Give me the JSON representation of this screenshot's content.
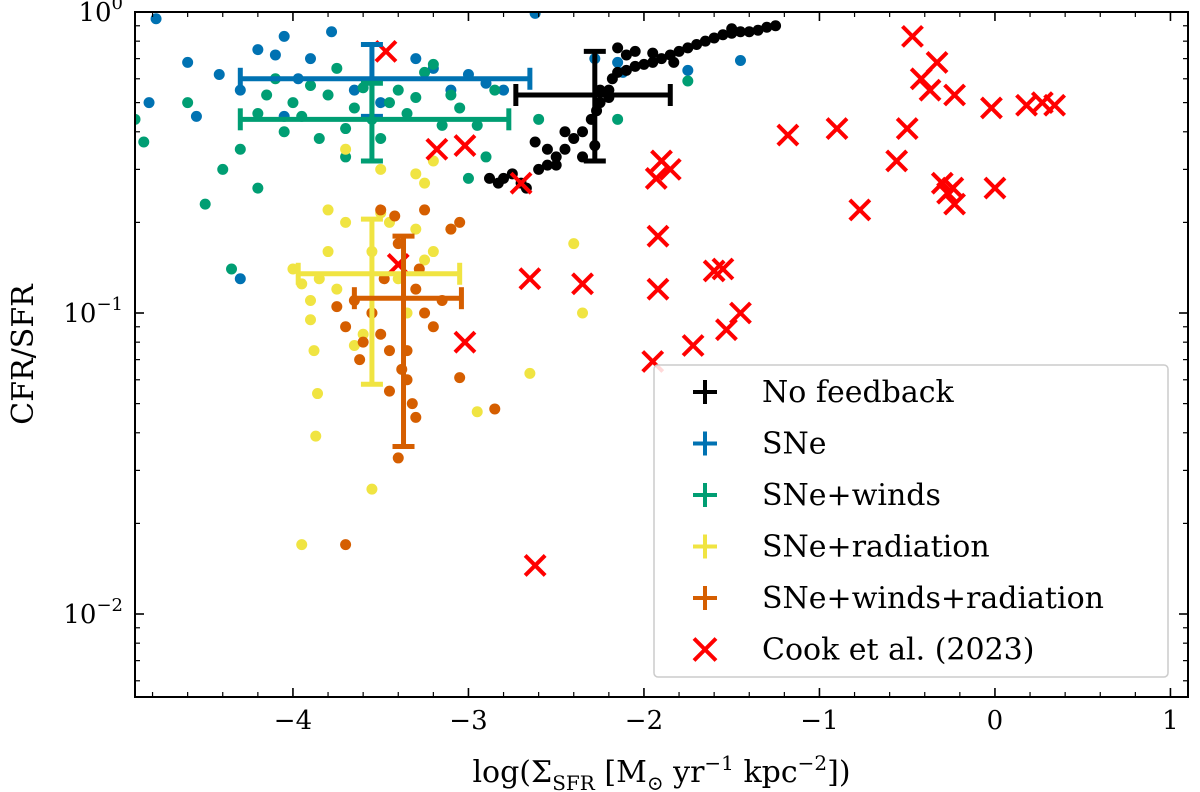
{
  "chart_data": {
    "type": "scatter",
    "title": "",
    "xlabel": "log(Σ_SFR [M_⊙ yr^−1 kpc^−2])",
    "xlabel_parts": {
      "prefix": "log(Σ",
      "sub": "SFR",
      "mid1": " [M",
      "sub2": "⊙",
      "mid2": " yr",
      "sup1": "−1",
      "mid3": " kpc",
      "sup2": "−2",
      "suffix": "])"
    },
    "ylabel": "CFR/SFR",
    "xlim": [
      -4.9,
      1.1
    ],
    "ylim": [
      0.0053,
      1.0
    ],
    "yscale": "log",
    "grid": false,
    "legend_position": "lower-right",
    "xticks": [
      {
        "value": -4,
        "label": "−4"
      },
      {
        "value": -3,
        "label": "−3"
      },
      {
        "value": -2,
        "label": "−2"
      },
      {
        "value": -1,
        "label": "−1"
      },
      {
        "value": 0,
        "label": "0"
      },
      {
        "value": 1,
        "label": "1"
      }
    ],
    "yticks": [
      {
        "value": 1,
        "base": "10",
        "exp": "0"
      },
      {
        "value": 0.1,
        "base": "10",
        "exp": "−1"
      },
      {
        "value": 0.01,
        "base": "10",
        "exp": "−2"
      }
    ],
    "series": [
      {
        "name": "No feedback",
        "color": "#000000",
        "points": [
          [
            -2.83,
            0.27
          ],
          [
            -2.8,
            0.28
          ],
          [
            -2.75,
            0.29
          ],
          [
            -2.7,
            0.27
          ],
          [
            -2.67,
            0.26
          ],
          [
            -2.6,
            0.3
          ],
          [
            -2.55,
            0.31
          ],
          [
            -2.5,
            0.33
          ],
          [
            -2.45,
            0.35
          ],
          [
            -2.4,
            0.38
          ],
          [
            -2.35,
            0.4
          ],
          [
            -2.3,
            0.44
          ],
          [
            -2.27,
            0.47
          ],
          [
            -2.25,
            0.5
          ],
          [
            -2.2,
            0.55
          ],
          [
            -2.18,
            0.6
          ],
          [
            -2.15,
            0.63
          ],
          [
            -2.1,
            0.64
          ],
          [
            -2.05,
            0.66
          ],
          [
            -2.0,
            0.67
          ],
          [
            -1.95,
            0.68
          ],
          [
            -1.9,
            0.7
          ],
          [
            -1.85,
            0.72
          ],
          [
            -1.8,
            0.74
          ],
          [
            -1.75,
            0.76
          ],
          [
            -1.7,
            0.78
          ],
          [
            -1.65,
            0.8
          ],
          [
            -1.6,
            0.82
          ],
          [
            -1.55,
            0.84
          ],
          [
            -1.5,
            0.85
          ],
          [
            -1.45,
            0.86
          ],
          [
            -1.4,
            0.86
          ],
          [
            -1.35,
            0.87
          ],
          [
            -1.3,
            0.89
          ],
          [
            -1.25,
            0.9
          ],
          [
            -2.62,
            0.37
          ],
          [
            -2.55,
            0.35
          ],
          [
            -2.45,
            0.4
          ],
          [
            -2.2,
            0.52
          ],
          [
            -2.25,
            0.55
          ],
          [
            -2.15,
            0.76
          ],
          [
            -2.1,
            0.72
          ],
          [
            -1.83,
            0.68
          ],
          [
            -2.88,
            0.28
          ],
          [
            -2.5,
            0.31
          ],
          [
            -2.35,
            0.33
          ],
          [
            -2.28,
            0.36
          ],
          [
            -1.95,
            0.73
          ],
          [
            -2.05,
            0.74
          ],
          [
            -1.5,
            0.88
          ]
        ],
        "errorbar": {
          "x": -2.28,
          "y": 0.53,
          "xerr": [
            0.45,
            0.43
          ],
          "yerr_range": [
            0.32,
            0.74
          ]
        }
      },
      {
        "name": "SNe",
        "color": "#0072b2",
        "points": [
          [
            -4.78,
            0.95
          ],
          [
            -4.82,
            0.5
          ],
          [
            -4.6,
            0.68
          ],
          [
            -4.55,
            0.45
          ],
          [
            -4.42,
            0.62
          ],
          [
            -4.3,
            0.55
          ],
          [
            -4.2,
            0.75
          ],
          [
            -4.1,
            0.72
          ],
          [
            -4.05,
            0.83
          ],
          [
            -3.97,
            0.6
          ],
          [
            -3.9,
            0.7
          ],
          [
            -3.78,
            0.86
          ],
          [
            -3.65,
            0.55
          ],
          [
            -3.5,
            0.5
          ],
          [
            -3.3,
            0.7
          ],
          [
            -3.2,
            0.65
          ],
          [
            -3.0,
            0.62
          ],
          [
            -2.9,
            0.58
          ],
          [
            -2.62,
            0.99
          ],
          [
            -2.28,
            0.7
          ],
          [
            -2.15,
            0.68
          ],
          [
            -2.12,
            0.63
          ],
          [
            -1.75,
            0.64
          ],
          [
            -1.45,
            0.69
          ],
          [
            -4.05,
            0.45
          ],
          [
            -4.3,
            0.13
          ],
          [
            -2.8,
            0.55
          ],
          [
            -3.1,
            0.55
          ]
        ],
        "errorbar": {
          "x": -3.55,
          "y": 0.6,
          "xerr": [
            0.75,
            0.9
          ],
          "yerr_range": [
            0.45,
            0.78
          ]
        }
      },
      {
        "name": "SNe+winds",
        "color": "#009e73",
        "points": [
          [
            -4.9,
            0.44
          ],
          [
            -4.85,
            0.37
          ],
          [
            -4.6,
            0.5
          ],
          [
            -4.5,
            0.23
          ],
          [
            -4.4,
            0.3
          ],
          [
            -4.35,
            0.14
          ],
          [
            -4.3,
            0.35
          ],
          [
            -4.2,
            0.46
          ],
          [
            -4.15,
            0.53
          ],
          [
            -4.1,
            0.6
          ],
          [
            -4.05,
            0.4
          ],
          [
            -4.0,
            0.5
          ],
          [
            -3.95,
            0.45
          ],
          [
            -3.9,
            0.57
          ],
          [
            -3.85,
            0.38
          ],
          [
            -3.8,
            0.53
          ],
          [
            -3.75,
            0.65
          ],
          [
            -3.7,
            0.41
          ],
          [
            -3.65,
            0.48
          ],
          [
            -3.6,
            0.56
          ],
          [
            -3.55,
            0.44
          ],
          [
            -3.45,
            0.5
          ],
          [
            -3.4,
            0.55
          ],
          [
            -3.35,
            0.46
          ],
          [
            -3.3,
            0.52
          ],
          [
            -3.25,
            0.63
          ],
          [
            -3.2,
            0.67
          ],
          [
            -3.15,
            0.42
          ],
          [
            -3.1,
            0.53
          ],
          [
            -3.05,
            0.48
          ],
          [
            -2.95,
            0.42
          ],
          [
            -2.9,
            0.33
          ],
          [
            -2.85,
            0.55
          ],
          [
            -3.0,
            0.28
          ],
          [
            -1.75,
            0.59
          ],
          [
            -2.15,
            0.44
          ],
          [
            -4.2,
            0.26
          ],
          [
            -3.7,
            0.33
          ],
          [
            -2.6,
            0.44
          ],
          [
            -3.5,
            0.38
          ]
        ],
        "errorbar": {
          "x": -3.55,
          "y": 0.44,
          "xerr": [
            0.75,
            0.78
          ],
          "yerr_range": [
            0.32,
            0.58
          ]
        }
      },
      {
        "name": "SNe+radiation",
        "color": "#f0e442",
        "points": [
          [
            -4.0,
            0.14
          ],
          [
            -3.95,
            0.125
          ],
          [
            -3.9,
            0.11
          ],
          [
            -3.9,
            0.095
          ],
          [
            -3.88,
            0.075
          ],
          [
            -3.86,
            0.054
          ],
          [
            -3.87,
            0.039
          ],
          [
            -3.95,
            0.017
          ],
          [
            -3.85,
            0.13
          ],
          [
            -3.8,
            0.16
          ],
          [
            -3.8,
            0.22
          ],
          [
            -3.75,
            0.12
          ],
          [
            -3.7,
            0.2
          ],
          [
            -3.65,
            0.078
          ],
          [
            -3.6,
            0.085
          ],
          [
            -3.55,
            0.1
          ],
          [
            -3.55,
            0.16
          ],
          [
            -3.5,
            0.215
          ],
          [
            -3.45,
            0.2
          ],
          [
            -3.4,
            0.13
          ],
          [
            -3.35,
            0.1
          ],
          [
            -3.3,
            0.19
          ],
          [
            -3.25,
            0.15
          ],
          [
            -3.2,
            0.16
          ],
          [
            -3.55,
            0.026
          ],
          [
            -3.5,
            0.3
          ],
          [
            -3.3,
            0.29
          ],
          [
            -3.25,
            0.27
          ],
          [
            -2.95,
            0.047
          ],
          [
            -2.65,
            0.063
          ],
          [
            -2.35,
            0.1
          ],
          [
            -2.4,
            0.17
          ],
          [
            -3.1,
            0.19
          ],
          [
            -3.7,
            0.35
          ],
          [
            -3.2,
            0.32
          ]
        ],
        "errorbar": {
          "x": -3.55,
          "y": 0.135,
          "xerr": [
            0.42,
            0.5
          ],
          "yerr_range": [
            0.058,
            0.205
          ]
        }
      },
      {
        "name": "SNe+winds+radiation",
        "color": "#d55e00",
        "points": [
          [
            -3.75,
            0.105
          ],
          [
            -3.7,
            0.09
          ],
          [
            -3.65,
            0.11
          ],
          [
            -3.6,
            0.08
          ],
          [
            -3.55,
            0.1
          ],
          [
            -3.5,
            0.085
          ],
          [
            -3.45,
            0.075
          ],
          [
            -3.42,
            0.21
          ],
          [
            -3.4,
            0.17
          ],
          [
            -3.38,
            0.065
          ],
          [
            -3.35,
            0.06
          ],
          [
            -3.32,
            0.05
          ],
          [
            -3.3,
            0.045
          ],
          [
            -3.28,
            0.14
          ],
          [
            -3.25,
            0.1
          ],
          [
            -3.2,
            0.09
          ],
          [
            -3.15,
            0.11
          ],
          [
            -3.1,
            0.19
          ],
          [
            -3.05,
            0.2
          ],
          [
            -3.05,
            0.061
          ],
          [
            -2.85,
            0.048
          ],
          [
            -3.7,
            0.017
          ],
          [
            -3.4,
            0.033
          ],
          [
            -3.45,
            0.055
          ],
          [
            -3.62,
            0.07
          ],
          [
            -3.35,
            0.075
          ],
          [
            -3.5,
            0.22
          ],
          [
            -3.25,
            0.22
          ],
          [
            -3.3,
            0.12
          ],
          [
            -3.48,
            0.13
          ]
        ],
        "errorbar": {
          "x": -3.37,
          "y": 0.112,
          "xerr": [
            0.28,
            0.33
          ],
          "yerr_range": [
            0.036,
            0.18
          ]
        }
      },
      {
        "name": "Cook et al. (2023)",
        "color": "#ff0000",
        "marker": "x",
        "points": [
          [
            -3.47,
            0.74
          ],
          [
            -3.18,
            0.35
          ],
          [
            -3.02,
            0.36
          ],
          [
            -2.7,
            0.27
          ],
          [
            -3.4,
            0.145
          ],
          [
            -2.65,
            0.13
          ],
          [
            -2.35,
            0.125
          ],
          [
            -3.02,
            0.08
          ],
          [
            -2.62,
            0.0145
          ],
          [
            -1.9,
            0.32
          ],
          [
            -1.93,
            0.28
          ],
          [
            -1.85,
            0.3
          ],
          [
            -1.92,
            0.18
          ],
          [
            -1.92,
            0.12
          ],
          [
            -1.95,
            0.069
          ],
          [
            -1.72,
            0.078
          ],
          [
            -1.6,
            0.138
          ],
          [
            -1.55,
            0.14
          ],
          [
            -1.53,
            0.088
          ],
          [
            -1.45,
            0.1
          ],
          [
            -1.18,
            0.39
          ],
          [
            -0.9,
            0.41
          ],
          [
            -0.77,
            0.22
          ],
          [
            -0.56,
            0.32
          ],
          [
            -0.5,
            0.41
          ],
          [
            -0.47,
            0.83
          ],
          [
            -0.42,
            0.6
          ],
          [
            -0.37,
            0.55
          ],
          [
            -0.33,
            0.68
          ],
          [
            -0.3,
            0.27
          ],
          [
            -0.27,
            0.25
          ],
          [
            -0.24,
            0.26
          ],
          [
            -0.23,
            0.23
          ],
          [
            -0.23,
            0.53
          ],
          [
            -0.02,
            0.48
          ],
          [
            0.0,
            0.26
          ],
          [
            0.18,
            0.49
          ],
          [
            0.27,
            0.5
          ],
          [
            0.34,
            0.49
          ]
        ]
      }
    ]
  }
}
